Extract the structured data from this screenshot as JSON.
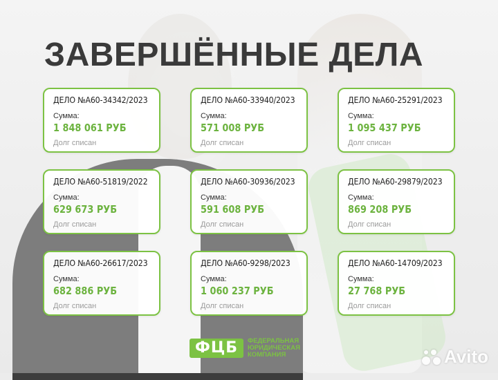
{
  "title": "ЗАВЕРШЁННЫЕ ДЕЛА",
  "colors": {
    "accent": "#7cc243",
    "value_green": "#6cb33f",
    "title": "#3a3a3a"
  },
  "cards": [
    {
      "case": "ДЕЛО №А60-34342/2023",
      "sum_label": "Сумма:",
      "amount": "1 848 061 РУБ",
      "status": "Долг списан"
    },
    {
      "case": "ДЕЛО №А60-33940/2023",
      "sum_label": "Сумма:",
      "amount": "571 008 РУБ",
      "status": "Долг списан"
    },
    {
      "case": "ДЕЛО №А60-25291/2023",
      "sum_label": "Сумма:",
      "amount": "1 095 437 РУБ",
      "status": "Долг списан"
    },
    {
      "case": "ДЕЛО №А60-51819/2022",
      "sum_label": "Сумма:",
      "amount": "629 673 РУБ",
      "status": "Долг списан"
    },
    {
      "case": "ДЕЛО №А60-30936/2023",
      "sum_label": "Сумма:",
      "amount": "591 608 РУБ",
      "status": "Долг списан"
    },
    {
      "case": "ДЕЛО №А60-29879/2023",
      "sum_label": "Сумма:",
      "amount": "869 208 РУБ",
      "status": "Долг списан"
    },
    {
      "case": "ДЕЛО №А60-26617/2023",
      "sum_label": "Сумма:",
      "amount": "682 886 РУБ",
      "status": "Долг списан"
    },
    {
      "case": "ДЕЛО №А60-9298/2023",
      "sum_label": "Сумма:",
      "amount": "1 060 237 РУБ",
      "status": "Долг списан"
    },
    {
      "case": "ДЕЛО №А60-14709/2023",
      "sum_label": "Сумма:",
      "amount": "27 768 РУБ",
      "status": "Долг списан"
    }
  ],
  "logo": {
    "mark": "ФЦБ",
    "line1": "ФЕДЕРАЛЬНАЯ",
    "line2": "ЮРИДИЧЕСКАЯ",
    "line3": "КОМПАНИЯ"
  },
  "watermark": {
    "text": "Avito",
    "icon": "avito-dots-icon"
  }
}
